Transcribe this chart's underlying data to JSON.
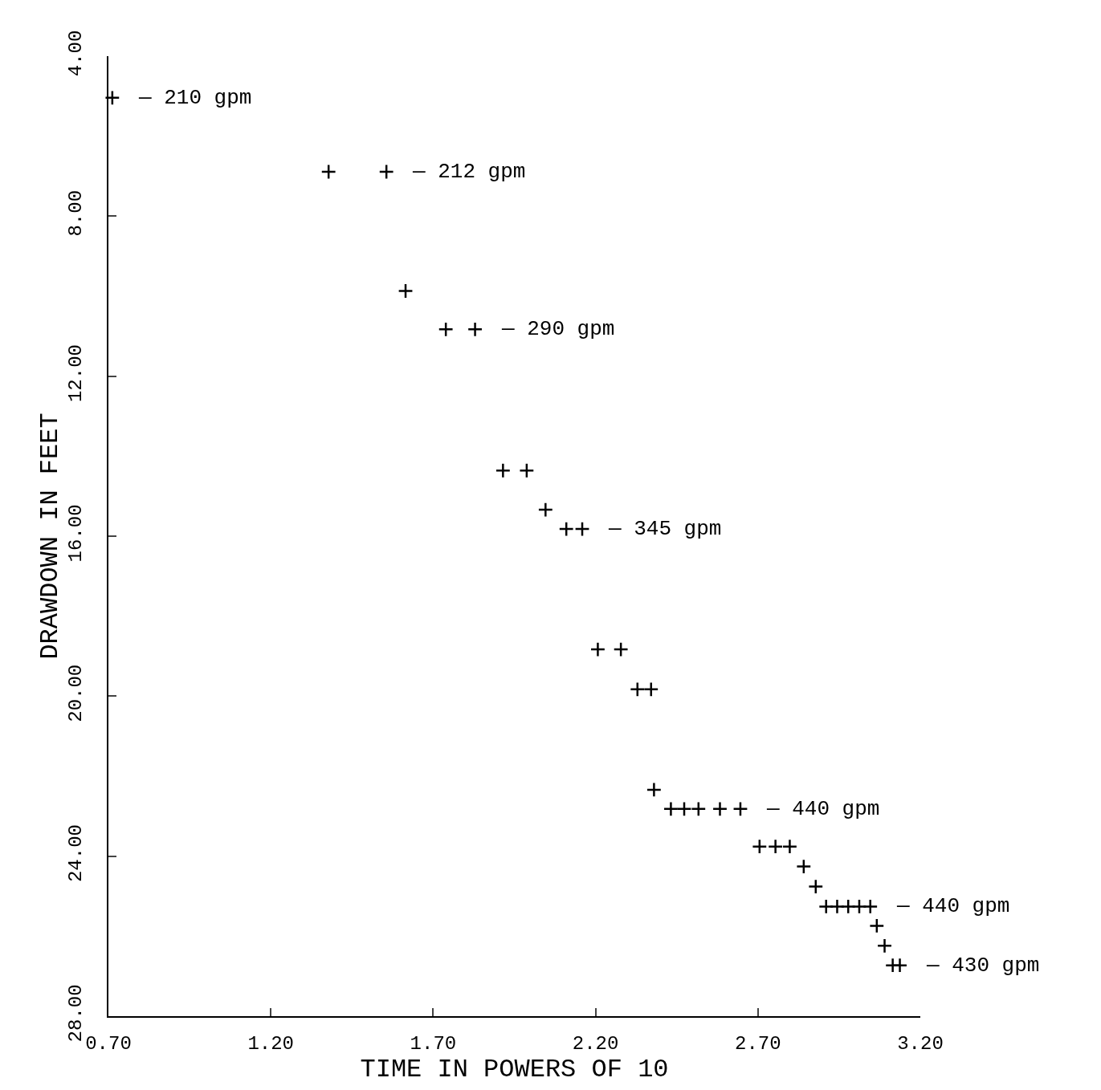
{
  "chart_data": {
    "type": "scatter",
    "xlabel": "TIME IN POWERS OF 10",
    "ylabel": "DRAWDOWN IN FEET",
    "x": [
      0.712,
      1.378,
      1.556,
      1.615,
      1.739,
      1.829,
      1.915,
      1.988,
      2.046,
      2.11,
      2.159,
      2.207,
      2.278,
      2.329,
      2.371,
      2.38,
      2.432,
      2.473,
      2.517,
      2.583,
      2.646,
      2.705,
      2.754,
      2.798,
      2.841,
      2.878,
      2.91,
      2.944,
      2.978,
      3.012,
      3.046,
      3.066,
      3.09,
      3.115,
      3.137
    ],
    "series": [
      {
        "color": "#000000",
        "values": [
          5.04,
          6.89,
          6.89,
          9.87,
          10.83,
          10.83,
          14.36,
          14.36,
          15.34,
          15.82,
          15.82,
          18.83,
          18.83,
          19.83,
          19.83,
          22.34,
          22.82,
          22.82,
          22.82,
          22.82,
          22.82,
          23.76,
          23.76,
          23.76,
          24.26,
          24.76,
          25.26,
          25.26,
          25.26,
          25.26,
          25.26,
          25.74,
          26.24,
          26.73,
          26.73
        ]
      }
    ],
    "annotations": [
      {
        "text": "— 210 gpm",
        "x": 0.712,
        "y": 5.04
      },
      {
        "text": "— 212 gpm",
        "x": 1.556,
        "y": 6.89
      },
      {
        "text": "— 290 gpm",
        "x": 1.829,
        "y": 10.83
      },
      {
        "text": "— 345 gpm",
        "x": 2.159,
        "y": 15.82
      },
      {
        "text": "— 440 gpm",
        "x": 2.646,
        "y": 22.82
      },
      {
        "text": "— 440 gpm",
        "x": 3.046,
        "y": 25.26
      },
      {
        "text": "— 430 gpm",
        "x": 3.137,
        "y": 26.73
      }
    ],
    "xlim": [
      0.7,
      3.2
    ],
    "xticks": [
      {
        "value": 0.7,
        "label": "0.70"
      },
      {
        "value": 1.2,
        "label": "1.20"
      },
      {
        "value": 1.7,
        "label": "1.70"
      },
      {
        "value": 2.2,
        "label": "2.20"
      },
      {
        "value": 2.7,
        "label": "2.70"
      },
      {
        "value": 3.2,
        "label": "3.20"
      }
    ],
    "ylim": [
      28,
      4
    ],
    "yticks": [
      {
        "value": 4,
        "label": "4.00"
      },
      {
        "value": 8,
        "label": "8.00"
      },
      {
        "value": 12,
        "label": "12.00"
      },
      {
        "value": 16,
        "label": "16.00"
      },
      {
        "value": 20,
        "label": "20.00"
      },
      {
        "value": 24,
        "label": "24.00"
      },
      {
        "value": 28,
        "label": "28.00"
      }
    ],
    "marker": "cross",
    "legend": false
  }
}
